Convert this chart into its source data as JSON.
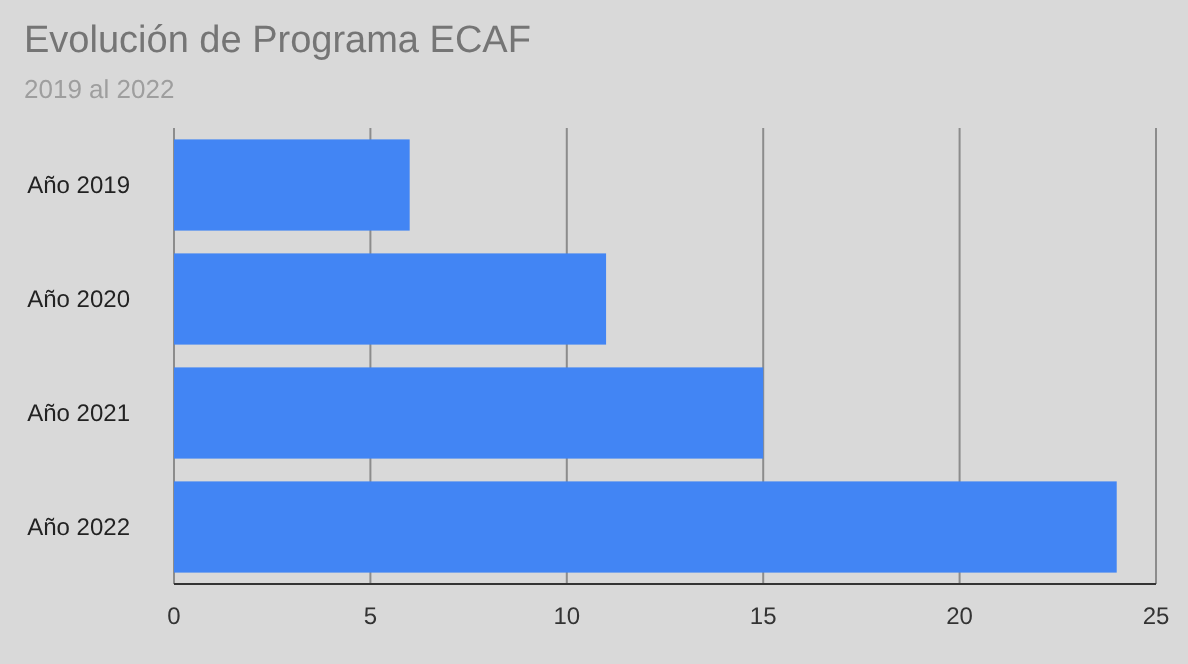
{
  "chart_data": {
    "type": "bar",
    "orientation": "horizontal",
    "title": "Evolución de Programa ECAF",
    "subtitle": "2019 al 2022",
    "categories": [
      "Año 2019",
      "Año 2020",
      "Año 2021",
      "Año 2022"
    ],
    "values": [
      6,
      11,
      15,
      24
    ],
    "color": "#4285f4",
    "xlim": [
      0,
      25
    ],
    "xticks": [
      0,
      5,
      10,
      15,
      20,
      25
    ],
    "grid": "x"
  }
}
